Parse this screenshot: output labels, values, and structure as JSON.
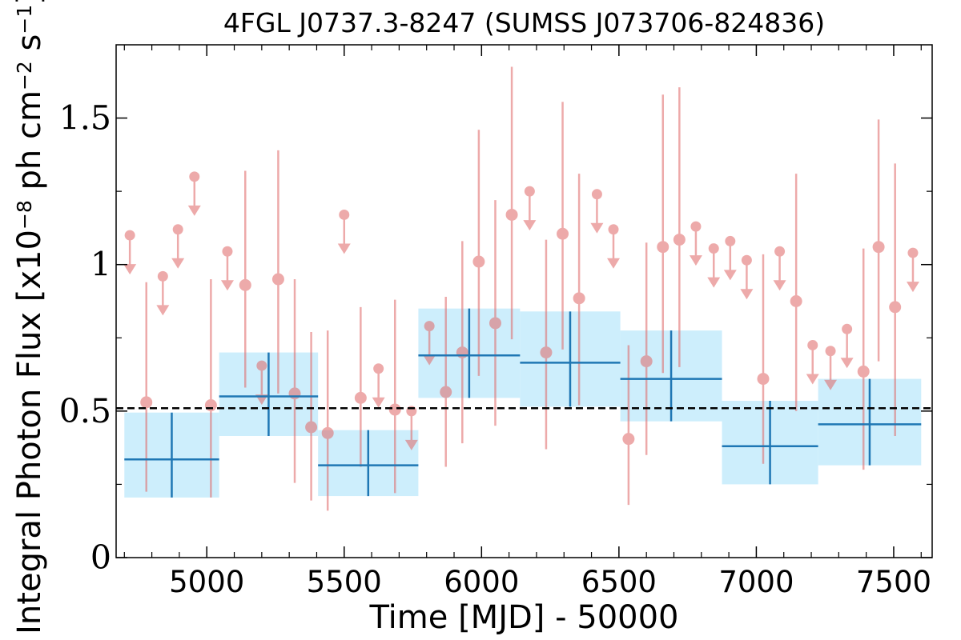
{
  "chart_data": {
    "type": "scatter",
    "title": "4FGL J0737.3-8247 (SUMSS J073706-824836)",
    "xlabel": "Time [MJD] - 50000",
    "ylabel": "Integral Photon Flux [x10",
    "ylabel_parts": [
      "Integral Photon Flux [x10",
      "−8",
      " ph cm",
      "−2",
      " s",
      "−1",
      "]"
    ],
    "xlim": [
      4670,
      7640
    ],
    "ylim": [
      0,
      1.75
    ],
    "x_ticks": [
      "5000",
      "5500",
      "6000",
      "6500",
      "7000",
      "7500"
    ],
    "y_ticks": [
      "0",
      "0.5",
      "1",
      "1.5"
    ],
    "grid": false,
    "colors": {
      "points": "#e06666",
      "points_alpha": 0.55,
      "bins_fill": "#cdeefc",
      "bins_line": "#1f77b4",
      "mean_line": "#000000"
    },
    "mean_flux": 0.51,
    "binned": [
      {
        "x0": 4700,
        "x1": 5045,
        "y": 0.335,
        "y_lo": 0.205,
        "y_hi": 0.495
      },
      {
        "x0": 5045,
        "x1": 5405,
        "y": 0.55,
        "y_lo": 0.415,
        "y_hi": 0.7
      },
      {
        "x0": 5405,
        "x1": 5770,
        "y": 0.315,
        "y_lo": 0.21,
        "y_hi": 0.435
      },
      {
        "x0": 5770,
        "x1": 6140,
        "y": 0.69,
        "y_lo": 0.545,
        "y_hi": 0.85
      },
      {
        "x0": 6140,
        "x1": 6505,
        "y": 0.665,
        "y_lo": 0.515,
        "y_hi": 0.84
      },
      {
        "x0": 6505,
        "x1": 6875,
        "y": 0.61,
        "y_lo": 0.465,
        "y_hi": 0.775
      },
      {
        "x0": 6875,
        "x1": 7225,
        "y": 0.38,
        "y_lo": 0.25,
        "y_hi": 0.535
      },
      {
        "x0": 7225,
        "x1": 7600,
        "y": 0.455,
        "y_lo": 0.315,
        "y_hi": 0.61
      }
    ],
    "detections": [
      {
        "x": 4780,
        "y": 0.53,
        "y_lo": 0.225,
        "y_hi": 0.94
      },
      {
        "x": 5015,
        "y": 0.52,
        "y_lo": 0.205,
        "y_hi": 0.95
      },
      {
        "x": 5140,
        "y": 0.93,
        "y_lo": 0.58,
        "y_hi": 1.32
      },
      {
        "x": 5260,
        "y": 0.95,
        "y_lo": 0.56,
        "y_hi": 1.39
      },
      {
        "x": 5320,
        "y": 0.56,
        "y_lo": 0.255,
        "y_hi": 0.95
      },
      {
        "x": 5380,
        "y": 0.445,
        "y_lo": 0.195,
        "y_hi": 0.77
      },
      {
        "x": 5440,
        "y": 0.425,
        "y_lo": 0.16,
        "y_hi": 0.775
      },
      {
        "x": 5560,
        "y": 0.545,
        "y_lo": 0.31,
        "y_hi": 0.855
      },
      {
        "x": 5685,
        "y": 0.505,
        "y_lo": 0.22,
        "y_hi": 0.88
      },
      {
        "x": 5870,
        "y": 0.565,
        "y_lo": 0.31,
        "y_hi": 0.89
      },
      {
        "x": 5930,
        "y": 0.7,
        "y_lo": 0.39,
        "y_hi": 1.08
      },
      {
        "x": 5990,
        "y": 1.01,
        "y_lo": 0.62,
        "y_hi": 1.46
      },
      {
        "x": 6050,
        "y": 0.8,
        "y_lo": 0.45,
        "y_hi": 1.22
      },
      {
        "x": 6110,
        "y": 1.17,
        "y_lo": 0.745,
        "y_hi": 1.675
      },
      {
        "x": 6235,
        "y": 0.7,
        "y_lo": 0.37,
        "y_hi": 1.085
      },
      {
        "x": 6295,
        "y": 1.105,
        "y_lo": 0.71,
        "y_hi": 1.555
      },
      {
        "x": 6355,
        "y": 0.885,
        "y_lo": 0.52,
        "y_hi": 1.31
      },
      {
        "x": 6535,
        "y": 0.405,
        "y_lo": 0.18,
        "y_hi": 0.725
      },
      {
        "x": 6600,
        "y": 0.67,
        "y_lo": 0.35,
        "y_hi": 1.075
      },
      {
        "x": 6660,
        "y": 1.06,
        "y_lo": 0.63,
        "y_hi": 1.58
      },
      {
        "x": 6720,
        "y": 1.085,
        "y_lo": 0.65,
        "y_hi": 1.605
      },
      {
        "x": 7025,
        "y": 0.61,
        "y_lo": 0.32,
        "y_hi": 1.035
      },
      {
        "x": 7145,
        "y": 0.875,
        "y_lo": 0.5,
        "y_hi": 1.31
      },
      {
        "x": 7390,
        "y": 0.635,
        "y_lo": 0.3,
        "y_hi": 1.055
      },
      {
        "x": 7445,
        "y": 1.06,
        "y_lo": 0.67,
        "y_hi": 1.495
      },
      {
        "x": 7505,
        "y": 0.855,
        "y_lo": 0.415,
        "y_hi": 1.345
      }
    ],
    "upper_limits": [
      {
        "x": 4720,
        "y": 1.1
      },
      {
        "x": 4840,
        "y": 0.96
      },
      {
        "x": 4895,
        "y": 1.12
      },
      {
        "x": 4955,
        "y": 1.3
      },
      {
        "x": 5075,
        "y": 1.045
      },
      {
        "x": 5200,
        "y": 0.655
      },
      {
        "x": 5500,
        "y": 1.17
      },
      {
        "x": 5625,
        "y": 0.645
      },
      {
        "x": 5745,
        "y": 0.5
      },
      {
        "x": 5810,
        "y": 0.79
      },
      {
        "x": 6175,
        "y": 1.25
      },
      {
        "x": 6420,
        "y": 1.24
      },
      {
        "x": 6480,
        "y": 1.12
      },
      {
        "x": 6780,
        "y": 1.13
      },
      {
        "x": 6845,
        "y": 1.055
      },
      {
        "x": 6905,
        "y": 1.08
      },
      {
        "x": 6965,
        "y": 1.015
      },
      {
        "x": 7085,
        "y": 1.045
      },
      {
        "x": 7205,
        "y": 0.725
      },
      {
        "x": 7270,
        "y": 0.705
      },
      {
        "x": 7330,
        "y": 0.78
      },
      {
        "x": 7570,
        "y": 1.04
      }
    ]
  }
}
